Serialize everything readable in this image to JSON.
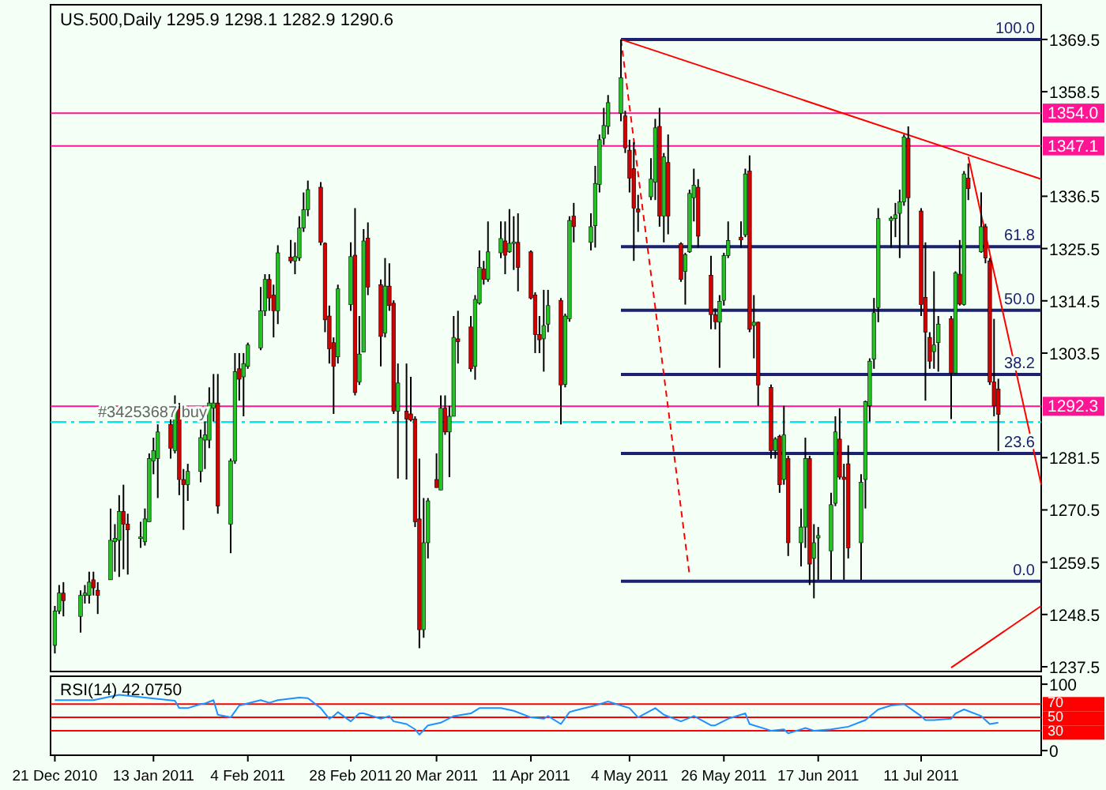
{
  "chart_data": [
    {
      "type": "candlestick",
      "title": "US.500,Daily 1295.9 1298.1 1282.9 1290.6",
      "x": [
        "2010-12-21",
        "2010-12-22",
        "2010-12-23",
        "2010-12-27",
        "2010-12-28",
        "2010-12-29",
        "2010-12-30",
        "2010-12-31",
        "2011-01-03",
        "2011-01-04",
        "2011-01-05",
        "2011-01-06",
        "2011-01-07",
        "2011-01-10",
        "2011-01-11",
        "2011-01-12",
        "2011-01-13",
        "2011-01-14",
        "2011-01-17",
        "2011-01-18",
        "2011-01-19",
        "2011-01-20",
        "2011-01-21",
        "2011-01-24",
        "2011-01-25",
        "2011-01-26",
        "2011-01-27",
        "2011-01-28",
        "2011-01-31",
        "2011-02-01",
        "2011-02-02",
        "2011-02-03",
        "2011-02-04",
        "2011-02-07",
        "2011-02-08",
        "2011-02-09",
        "2011-02-10",
        "2011-02-11",
        "2011-02-14",
        "2011-02-15",
        "2011-02-16",
        "2011-02-17",
        "2011-02-18",
        "2011-02-21",
        "2011-02-22",
        "2011-02-23",
        "2011-02-24",
        "2011-02-25",
        "2011-02-28",
        "2011-03-01",
        "2011-03-02",
        "2011-03-03",
        "2011-03-04",
        "2011-03-07",
        "2011-03-08",
        "2011-03-09",
        "2011-03-10",
        "2011-03-11",
        "2011-03-13",
        "2011-03-14",
        "2011-03-15",
        "2011-03-16",
        "2011-03-17",
        "2011-03-18",
        "2011-03-20",
        "2011-03-21",
        "2011-03-22",
        "2011-03-23",
        "2011-03-24",
        "2011-03-25",
        "2011-03-28",
        "2011-03-29",
        "2011-03-30",
        "2011-03-31",
        "2011-04-01",
        "2011-04-04",
        "2011-04-05",
        "2011-04-06",
        "2011-04-07",
        "2011-04-08",
        "2011-04-11",
        "2011-04-12",
        "2011-04-13",
        "2011-04-14",
        "2011-04-15",
        "2011-04-18",
        "2011-04-19",
        "2011-04-20",
        "2011-04-21",
        "2011-04-25",
        "2011-04-26",
        "2011-04-27",
        "2011-04-28",
        "2011-04-29",
        "2011-05-02",
        "2011-05-03",
        "2011-05-04",
        "2011-05-05",
        "2011-05-06",
        "2011-05-09",
        "2011-05-10",
        "2011-05-11",
        "2011-05-12",
        "2011-05-13",
        "2011-05-16",
        "2011-05-17",
        "2011-05-18",
        "2011-05-19",
        "2011-05-20",
        "2011-05-23",
        "2011-05-24",
        "2011-05-25",
        "2011-05-26",
        "2011-05-27",
        "2011-05-30",
        "2011-05-31",
        "2011-06-01",
        "2011-06-02",
        "2011-06-03",
        "2011-06-06",
        "2011-06-07",
        "2011-06-08",
        "2011-06-09",
        "2011-06-10",
        "2011-06-13",
        "2011-06-14",
        "2011-06-15",
        "2011-06-16",
        "2011-06-17",
        "2011-06-20",
        "2011-06-21",
        "2011-06-22",
        "2011-06-23",
        "2011-06-24",
        "2011-06-27",
        "2011-06-28",
        "2011-06-29",
        "2011-06-30",
        "2011-07-01",
        "2011-07-04",
        "2011-07-05",
        "2011-07-06",
        "2011-07-07",
        "2011-07-08",
        "2011-07-11",
        "2011-07-12",
        "2011-07-13",
        "2011-07-14",
        "2011-07-15",
        "2011-07-18",
        "2011-07-19",
        "2011-07-20",
        "2011-07-21",
        "2011-07-22",
        "2011-07-25",
        "2011-07-26",
        "2011-07-27",
        "2011-07-28",
        "2011-07-29"
      ],
      "ohlc": [
        [
          1242.0,
          1250.3,
          1240.3,
          1249.2
        ],
        [
          1249.2,
          1254.7,
          1248.6,
          1253.0
        ],
        [
          1253.0,
          1255.3,
          1248.1,
          1251.4
        ],
        [
          1248.1,
          1253.6,
          1244.7,
          1252.5
        ],
        [
          1252.5,
          1254.7,
          1250.8,
          1253.0
        ],
        [
          1252.5,
          1257.5,
          1250.8,
          1255.3
        ],
        [
          1255.8,
          1257.5,
          1252.5,
          1254.1
        ],
        [
          1253.6,
          1255.3,
          1248.6,
          1252.5
        ],
        [
          1255.8,
          1270.8,
          1255.8,
          1264.1
        ],
        [
          1263.8,
          1267.5,
          1257.5,
          1264.5
        ],
        [
          1264.1,
          1273.6,
          1256.4,
          1270.2
        ],
        [
          1270.2,
          1275.8,
          1258.0,
          1267.5
        ],
        [
          1267.5,
          1269.7,
          1256.9,
          1266.3
        ],
        [
          1264.5,
          1268.0,
          1262.5,
          1264.8
        ],
        [
          1263.8,
          1270.8,
          1263.0,
          1268.6
        ],
        [
          1268.0,
          1282.4,
          1268.0,
          1281.3
        ],
        [
          1280.8,
          1285.7,
          1278.0,
          1283.0
        ],
        [
          1281.3,
          1288.5,
          1273.0,
          1286.9
        ],
        [
          1288.5,
          1289.6,
          1281.3,
          1283.5
        ],
        [
          1283.0,
          1294.6,
          1282.4,
          1291.9
        ],
        [
          1291.9,
          1293.0,
          1273.6,
          1276.9
        ],
        [
          1276.9,
          1279.1,
          1266.3,
          1275.8
        ],
        [
          1275.8,
          1280.2,
          1272.4,
          1278.6
        ],
        [
          1278.6,
          1287.4,
          1276.3,
          1285.7
        ],
        [
          1285.2,
          1289.1,
          1279.1,
          1286.3
        ],
        [
          1285.2,
          1296.3,
          1283.5,
          1293.0
        ],
        [
          1291.9,
          1299.1,
          1289.1,
          1293.0
        ],
        [
          1293.0,
          1299.1,
          1269.7,
          1271.3
        ],
        [
          1267.5,
          1281.3,
          1261.4,
          1280.8
        ],
        [
          1280.8,
          1303.5,
          1280.2,
          1299.6
        ],
        [
          1300.2,
          1303.5,
          1293.5,
          1298.0
        ],
        [
          1298.5,
          1303.5,
          1290.2,
          1301.3
        ],
        [
          1300.7,
          1305.7,
          1300.2,
          1305.2
        ],
        [
          1304.6,
          1317.4,
          1304.1,
          1312.4
        ],
        [
          1312.4,
          1320.1,
          1311.3,
          1319.0
        ],
        [
          1319.0,
          1320.1,
          1312.4,
          1315.1
        ],
        [
          1315.7,
          1317.9,
          1306.8,
          1312.4
        ],
        [
          1312.4,
          1326.2,
          1309.6,
          1324.6
        ],
        [
          1323.7,
          1327.3,
          1322.4,
          1322.9
        ],
        [
          1322.9,
          1326.8,
          1320.1,
          1323.8
        ],
        [
          1323.5,
          1332.3,
          1322.9,
          1329.8
        ],
        [
          1329.8,
          1337.3,
          1329.0,
          1333.7
        ],
        [
          1333.7,
          1339.8,
          1332.3,
          1337.9
        ],
        [
          1338.4,
          1339.5,
          1326.2,
          1326.8
        ],
        [
          1326.6,
          1326.8,
          1307.9,
          1310.5
        ],
        [
          1311.3,
          1313.5,
          1301.3,
          1304.4
        ],
        [
          1305.7,
          1306.8,
          1290.7,
          1300.7
        ],
        [
          1302.7,
          1317.9,
          1301.3,
          1317.0
        ],
        [
          1313.7,
          1326.8,
          1312.4,
          1323.8
        ],
        [
          1324.1,
          1334.0,
          1294.6,
          1295.2
        ],
        [
          1297.4,
          1311.3,
          1296.8,
          1303.3
        ],
        [
          1303.7,
          1329.6,
          1303.7,
          1327.1
        ],
        [
          1327.7,
          1331.0,
          1315.7,
          1317.4
        ],
        [
          1317.9,
          1319.0,
          1300.7,
          1307.0
        ],
        [
          1307.7,
          1323.5,
          1306.8,
          1317.6
        ],
        [
          1317.6,
          1322.4,
          1312.4,
          1313.5
        ],
        [
          1314.0,
          1314.6,
          1290.7,
          1291.3
        ],
        [
          1291.3,
          1301.3,
          1277.1,
          1297.2
        ],
        [
          1291.3,
          1301.3,
          1276.9,
          1289.6
        ],
        [
          1290.7,
          1298.5,
          1289.1,
          1289.4
        ],
        [
          1289.6,
          1290.2,
          1266.9,
          1268.0
        ],
        [
          1268.6,
          1281.3,
          1241.4,
          1245.3
        ],
        [
          1245.3,
          1273.0,
          1243.6,
          1263.6
        ],
        [
          1263.6,
          1273.0,
          1260.3,
          1272.4
        ],
        [
          1276.9,
          1282.4,
          1275.2,
          1275.2
        ],
        [
          1274.7,
          1294.6,
          1274.7,
          1291.9
        ],
        [
          1291.9,
          1294.6,
          1286.3,
          1286.9
        ],
        [
          1286.9,
          1292.4,
          1277.4,
          1290.2
        ],
        [
          1290.2,
          1311.3,
          1290.2,
          1306.8
        ],
        [
          1306.5,
          1312.4,
          1301.3,
          1305.9
        ],
        [
          1309.0,
          1311.3,
          1299.6,
          1300.2
        ],
        [
          1300.7,
          1315.7,
          1297.9,
          1314.8
        ],
        [
          1314.0,
          1325.1,
          1313.7,
          1321.5
        ],
        [
          1321.2,
          1322.9,
          1317.9,
          1319.0
        ],
        [
          1319.0,
          1331.2,
          1318.5,
          1324.8
        ],
        [
          1324.6,
          1331.2,
          1323.5,
          1327.6
        ],
        [
          1327.1,
          1331.2,
          1320.1,
          1324.1
        ],
        [
          1324.8,
          1333.8,
          1324.6,
          1326.6
        ],
        [
          1326.6,
          1332.3,
          1321.0,
          1326.9
        ],
        [
          1326.8,
          1332.9,
          1316.5,
          1321.5
        ],
        [
          1324.8,
          1325.1,
          1314.8,
          1315.1
        ],
        [
          1315.7,
          1316.3,
          1303.5,
          1307.4
        ],
        [
          1307.4,
          1311.3,
          1303.5,
          1306.3
        ],
        [
          1306.5,
          1316.8,
          1299.6,
          1309.3
        ],
        [
          1309.6,
          1316.8,
          1307.9,
          1313.5
        ],
        [
          1314.6,
          1315.1,
          1288.5,
          1296.8
        ],
        [
          1296.9,
          1311.8,
          1296.3,
          1311.3
        ],
        [
          1310.7,
          1332.3,
          1310.1,
          1331.4
        ],
        [
          1332.3,
          1335.1,
          1326.8,
          1330.1
        ],
        [
          1326.8,
          1332.9,
          1325.1,
          1330.1
        ],
        [
          1330.3,
          1342.9,
          1325.7,
          1339.2
        ],
        [
          1339.0,
          1349.5,
          1337.3,
          1348.4
        ],
        [
          1348.7,
          1355.1,
          1347.3,
          1351.4
        ],
        [
          1351.2,
          1357.8,
          1349.5,
          1356.2
        ],
        [
          1354.0,
          1369.5,
          1352.3,
          1361.4
        ],
        [
          1353.4,
          1354.5,
          1345.6,
          1346.7
        ],
        [
          1346.2,
          1348.4,
          1337.3,
          1340.3
        ],
        [
          1342.3,
          1347.9,
          1322.9,
          1334.0
        ],
        [
          1333.8,
          1336.8,
          1329.0,
          1333.2
        ],
        [
          1336.4,
          1344.5,
          1335.7,
          1340.1
        ],
        [
          1339.5,
          1352.8,
          1335.7,
          1350.9
        ],
        [
          1351.2,
          1355.1,
          1330.1,
          1332.3
        ],
        [
          1332.3,
          1345.6,
          1326.8,
          1344.8
        ],
        [
          1343.6,
          1349.5,
          1328.5,
          1332.3
        ],
        [
          1326.5,
          1326.8,
          1318.5,
          1319.0
        ],
        [
          1320.7,
          1324.6,
          1313.7,
          1324.2
        ],
        [
          1324.8,
          1337.9,
          1324.6,
          1337.1
        ],
        [
          1336.2,
          1342.3,
          1331.2,
          1338.8
        ],
        [
          1338.4,
          1340.1,
          1325.7,
          1328.1
        ],
        [
          1319.9,
          1324.0,
          1308.5,
          1311.6
        ],
        [
          1311.6,
          1312.9,
          1308.5,
          1310.1
        ],
        [
          1310.0,
          1315.7,
          1300.4,
          1314.4
        ],
        [
          1314.6,
          1324.6,
          1313.5,
          1324.0
        ],
        [
          1324.0,
          1331.2,
          1323.5,
          1327.2
        ],
        [
          1327.9,
          1331.2,
          1325.7,
          1327.3
        ],
        [
          1328.4,
          1342.3,
          1327.9,
          1341.2
        ],
        [
          1341.8,
          1345.1,
          1307.9,
          1308.5
        ],
        [
          1309.3,
          1315.7,
          1302.4,
          1310.0
        ],
        [
          1310.0,
          1310.1,
          1292.4,
          1296.8
        ],
        [
          1296.3,
          1296.9,
          1281.3,
          1283.0
        ],
        [
          1283.0,
          1285.8,
          1281.3,
          1285.4
        ],
        [
          1286.0,
          1286.3,
          1274.1,
          1275.8
        ],
        [
          1276.9,
          1292.4,
          1275.8,
          1286.3
        ],
        [
          1281.3,
          1281.9,
          1260.8,
          1263.6
        ],
        [
          1263.6,
          1270.8,
          1258.6,
          1266.9
        ],
        [
          1266.9,
          1285.7,
          1262.5,
          1281.3
        ],
        [
          1281.3,
          1281.9,
          1254.7,
          1259.1
        ],
        [
          1260.3,
          1267.5,
          1251.9,
          1263.6
        ],
        [
          1264.6,
          1266.9,
          1255.8,
          1265.1
        ],
        [
          1261.9,
          1274.1,
          1255.8,
          1271.6
        ],
        [
          1271.9,
          1290.2,
          1271.3,
          1286.9
        ],
        [
          1285.4,
          1291.9,
          1276.9,
          1277.4
        ],
        [
          1277.4,
          1280.2,
          1255.8,
          1276.9
        ],
        [
          1280.2,
          1284.1,
          1260.3,
          1262.5
        ],
        [
          1263.6,
          1278.0,
          1255.8,
          1276.3
        ],
        [
          1276.9,
          1293.5,
          1270.8,
          1293.3
        ],
        [
          1292.4,
          1302.4,
          1289.1,
          1301.8
        ],
        [
          1302.2,
          1315.1,
          1300.2,
          1312.0
        ],
        [
          1313.1,
          1334.0,
          1310.0,
          1331.8
        ],
        [
          1331.4,
          1332.3,
          1325.7,
          1331.9
        ],
        [
          1331.8,
          1335.1,
          1327.9,
          1332.6
        ],
        [
          1332.9,
          1337.9,
          1323.5,
          1335.3
        ],
        [
          1335.3,
          1349.5,
          1334.5,
          1349.0
        ],
        [
          1348.7,
          1351.2,
          1326.2,
          1336.2
        ],
        [
          1333.4,
          1334.0,
          1311.3,
          1313.7
        ],
        [
          1315.2,
          1326.8,
          1293.5,
          1307.9
        ],
        [
          1306.8,
          1307.9,
          1300.2,
          1301.8
        ],
        [
          1303.8,
          1320.7,
          1300.2,
          1305.2
        ],
        [
          1305.7,
          1311.3,
          1299.6,
          1309.6
        ],
        [
          1310.7,
          1311.3,
          1289.6,
          1299.3
        ],
        [
          1299.3,
          1320.7,
          1299.1,
          1320.4
        ],
        [
          1320.1,
          1327.3,
          1313.5,
          1313.8
        ],
        [
          1313.7,
          1341.8,
          1313.5,
          1341.2
        ],
        [
          1340.3,
          1343.4,
          1335.7,
          1338.1
        ],
        [
          1324.8,
          1337.3,
          1324.6,
          1330.1
        ],
        [
          1330.1,
          1330.7,
          1322.4,
          1323.5
        ],
        [
          1322.9,
          1323.5,
          1296.8,
          1297.4
        ],
        [
          1297.4,
          1310.7,
          1290.2,
          1292.4
        ],
        [
          1295.9,
          1298.1,
          1282.9,
          1290.6
        ]
      ],
      "series": [
        {
          "type": "line",
          "name": "100.0",
          "color": "#1c2270",
          "x": [
            "2011-05-02",
            "2011-08-08"
          ],
          "values": [
            1369.5,
            1369.5
          ]
        },
        {
          "type": "line",
          "name": "61.8",
          "color": "#1c2270",
          "x": [
            "2011-05-02",
            "2011-08-08"
          ],
          "values": [
            1325.9,
            1325.9
          ]
        },
        {
          "type": "line",
          "name": "50.0",
          "color": "#1c2270",
          "x": [
            "2011-05-02",
            "2011-08-08"
          ],
          "values": [
            1312.5,
            1312.5
          ]
        },
        {
          "type": "line",
          "name": "38.2",
          "color": "#1c2270",
          "x": [
            "2011-05-02",
            "2011-08-08"
          ],
          "values": [
            1299.0,
            1299.0
          ]
        },
        {
          "type": "line",
          "name": "23.6",
          "color": "#1c2270",
          "x": [
            "2011-05-02",
            "2011-08-08"
          ],
          "values": [
            1282.4,
            1282.4
          ]
        },
        {
          "type": "line",
          "name": "0.0",
          "color": "#1c2270",
          "x": [
            "2011-05-02",
            "2011-08-08"
          ],
          "values": [
            1255.5,
            1255.5
          ]
        },
        {
          "type": "line",
          "color": "#ff0000",
          "x": [
            "2011-05-02",
            "2011-08-08"
          ],
          "values": [
            1369.5,
            1340.1
          ]
        },
        {
          "type": "line",
          "color": "#ff0000",
          "line_style": "dashed",
          "x": [
            "2011-05-02",
            "2011-05-18"
          ],
          "values": [
            1369.5,
            1256.7
          ]
        },
        {
          "type": "line",
          "color": "#ff0000",
          "x": [
            "2011-07-22",
            "2011-08-08"
          ],
          "values": [
            1344.8,
            1275.8
          ]
        },
        {
          "type": "line",
          "color": "#ff0000",
          "x": [
            "2011-07-18",
            "2011-08-08"
          ],
          "values": [
            1237.3,
            1250.3
          ]
        }
      ],
      "ref_lines": [
        {
          "axis": "y",
          "value": 1354.0,
          "label": "1354.0",
          "color": "#ff1493"
        },
        {
          "axis": "y",
          "value": 1347.1,
          "label": "1347.1",
          "color": "#ff1493"
        },
        {
          "axis": "y",
          "value": 1292.3,
          "label": "1292.3",
          "color": "#ff1493"
        },
        {
          "axis": "y",
          "value": 1289.0,
          "label": "#34253687 buy",
          "color": "#00e5ee",
          "line_style": "dashed"
        }
      ],
      "xlim": [
        "2010-12-20",
        "2011-08-08"
      ],
      "ylim": [
        1236.5,
        1376.8
      ],
      "yticks": [
        1237.5,
        1248.5,
        1259.5,
        1270.5,
        1281.5,
        1303.5,
        1314.5,
        1325.5,
        1336.5,
        1358.5,
        1369.5
      ],
      "tick_labels": "y"
    },
    {
      "type": "line",
      "title": "RSI(14) 42.0750",
      "series": [
        {
          "color": "#1e90ff",
          "x": [
            "2010-12-21",
            "2010-12-30",
            "2011-01-05",
            "2011-01-11",
            "2011-01-18",
            "2011-01-19",
            "2011-01-21",
            "2011-01-24",
            "2011-01-25",
            "2011-01-27",
            "2011-01-28",
            "2011-01-31",
            "2011-02-02",
            "2011-02-07",
            "2011-02-09",
            "2011-02-11",
            "2011-02-16",
            "2011-02-18",
            "2011-02-21",
            "2011-02-23",
            "2011-02-24",
            "2011-02-25",
            "2011-02-28",
            "2011-03-02",
            "2011-03-03",
            "2011-03-07",
            "2011-03-09",
            "2011-03-10",
            "2011-03-13",
            "2011-03-15",
            "2011-03-16",
            "2011-03-18",
            "2011-03-21",
            "2011-03-24",
            "2011-03-28",
            "2011-03-30",
            "2011-04-04",
            "2011-04-07",
            "2011-04-11",
            "2011-04-14",
            "2011-04-15",
            "2011-04-18",
            "2011-04-20",
            "2011-04-21",
            "2011-04-26",
            "2011-04-29",
            "2011-05-04",
            "2011-05-06",
            "2011-05-10",
            "2011-05-12",
            "2011-05-16",
            "2011-05-19",
            "2011-05-23",
            "2011-05-24",
            "2011-05-27",
            "2011-05-31",
            "2011-06-01",
            "2011-06-06",
            "2011-06-09",
            "2011-06-10",
            "2011-06-14",
            "2011-06-16",
            "2011-06-20",
            "2011-06-24",
            "2011-06-28",
            "2011-07-01",
            "2011-07-04",
            "2011-07-07",
            "2011-07-11",
            "2011-07-12",
            "2011-07-14",
            "2011-07-18",
            "2011-07-19",
            "2011-07-21",
            "2011-07-25",
            "2011-07-27",
            "2011-07-29"
          ],
          "values": [
            76,
            76,
            84,
            80,
            75,
            64,
            64,
            70,
            71,
            76,
            54,
            50,
            68,
            76,
            72,
            76,
            80,
            79,
            64,
            48,
            52,
            58,
            44,
            56,
            56,
            48,
            52,
            44,
            40,
            32,
            24,
            38,
            42,
            52,
            56,
            64,
            64,
            60,
            50,
            48,
            52,
            40,
            58,
            60,
            68,
            74,
            64,
            50,
            64,
            54,
            44,
            52,
            38,
            38,
            48,
            56,
            40,
            30,
            32,
            26,
            34,
            30,
            32,
            36,
            46,
            62,
            68,
            70,
            52,
            46,
            46,
            48,
            56,
            62,
            52,
            40,
            42
          ]
        }
      ],
      "ref_lines": [
        {
          "axis": "y",
          "value": 70,
          "label": "70",
          "color": "#ff0000"
        },
        {
          "axis": "y",
          "value": 50,
          "label": "50",
          "color": "#ff0000"
        },
        {
          "axis": "y",
          "value": 30,
          "label": "30",
          "color": "#ff0000"
        }
      ],
      "xlim": [
        "2010-12-20",
        "2011-08-08"
      ],
      "ylim": [
        -7,
        112
      ],
      "yticks": [
        0,
        100
      ],
      "xticks": [
        {
          "value": "2010-12-21",
          "label": "21 Dec 2010"
        },
        {
          "value": "2011-01-13",
          "label": "13 Jan 2011"
        },
        {
          "value": "2011-02-04",
          "label": "4 Feb 2011"
        },
        {
          "value": "2011-02-28",
          "label": "28 Feb 2011"
        },
        {
          "value": "2011-03-20",
          "label": "20 Mar 2011"
        },
        {
          "value": "2011-04-11",
          "label": "11 Apr 2011"
        },
        {
          "value": "2011-05-04",
          "label": "4 May 2011"
        },
        {
          "value": "2011-05-26",
          "label": "26 May 2011"
        },
        {
          "value": "2011-06-17",
          "label": "17 Jun 2011"
        },
        {
          "value": "2011-07-11",
          "label": "11 Jul 2011"
        }
      ]
    }
  ]
}
